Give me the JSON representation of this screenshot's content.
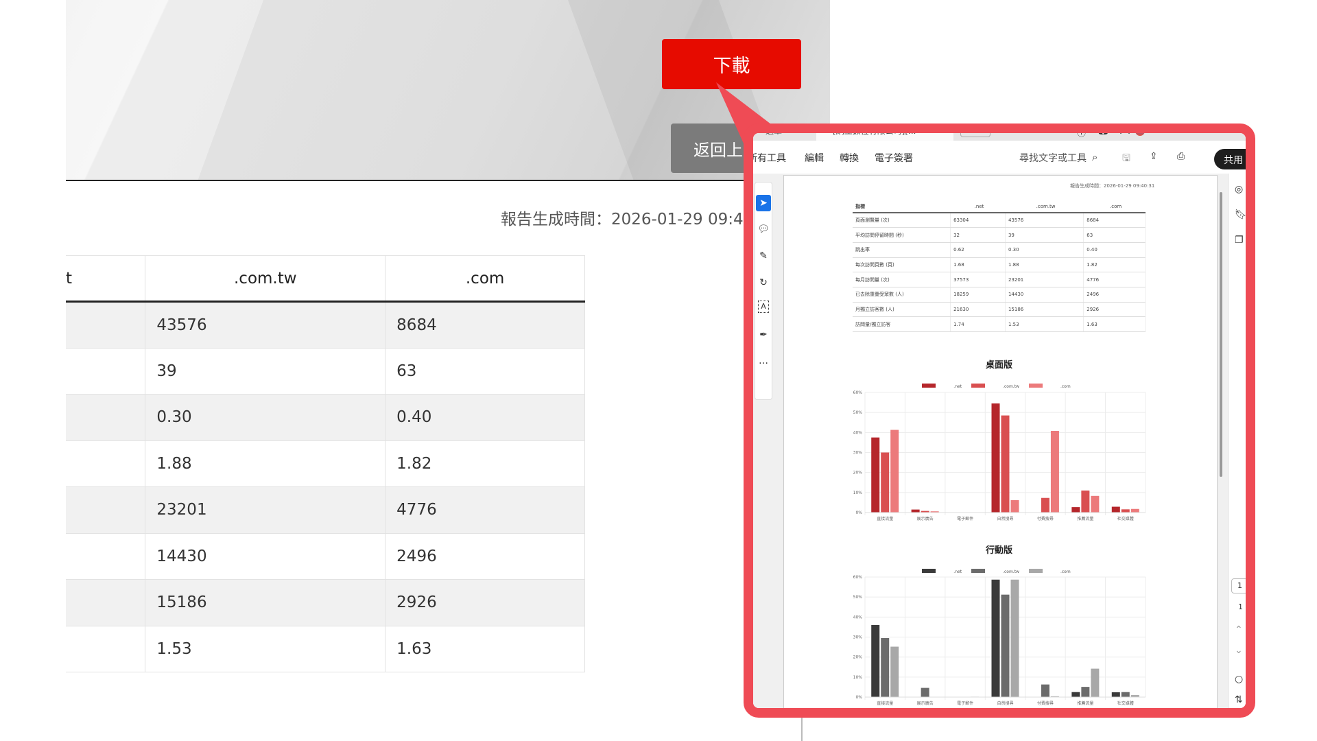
{
  "page": {
    "download_label": "下載",
    "back_label": "返回上",
    "report_time": "報告生成時間：2026-01-29 09:4",
    "table": {
      "headers": [
        "t",
        ".com.tw",
        ".com"
      ],
      "rows": [
        [
          "",
          "43576",
          "8684"
        ],
        [
          "",
          "39",
          "63"
        ],
        [
          "",
          "0.30",
          "0.40"
        ],
        [
          "",
          "1.88",
          "1.82"
        ],
        [
          "",
          "23201",
          "4776"
        ],
        [
          "",
          "14430",
          "2496"
        ],
        [
          "",
          "15186",
          "2926"
        ],
        [
          "",
          "1.53",
          "1.63"
        ]
      ]
    }
  },
  "popup": {
    "accent_color": "#ef4b55",
    "browser": {
      "menu_label": "選單",
      "tab_title": "[網立數位有限公司][...",
      "new_tab_label": "建立"
    },
    "toolbar": {
      "all_tools": "所有工具",
      "edit": "編輯",
      "convert": "轉換",
      "esign": "電子簽署",
      "search_placeholder": "尋找文字或工具",
      "share": "共用"
    },
    "right_panel": {
      "page_input": "1",
      "page_total": "1"
    },
    "pdf": {
      "report_time": "報告生成時間：2026-01-29 09:40:31",
      "table": {
        "headers": [
          "指標",
          ".net",
          ".com.tw",
          ".com"
        ],
        "rows": [
          [
            "頁面瀏覽量 (次)",
            "63304",
            "43576",
            "8684"
          ],
          [
            "平均訪問停留時間 (秒)",
            "32",
            "39",
            "63"
          ],
          [
            "跳出率",
            "0.62",
            "0.30",
            "0.40"
          ],
          [
            "每次訪問頁數 (頁)",
            "1.68",
            "1.88",
            "1.82"
          ],
          [
            "每月訪問量 (次)",
            "37573",
            "23201",
            "4776"
          ],
          [
            "已去除重疊受眾數 (人)",
            "18259",
            "14430",
            "2496"
          ],
          [
            "月獨立訪客數 (人)",
            "21630",
            "15186",
            "2926"
          ],
          [
            "訪問量/獨立訪客",
            "1.74",
            "1.53",
            "1.63"
          ]
        ]
      }
    }
  },
  "chart_data": [
    {
      "type": "bar",
      "title": "桌面版",
      "categories": [
        "直接流量",
        "展示廣告",
        "電子郵件",
        "自然搜尋",
        "付費搜尋",
        "推薦流量",
        "社交媒體"
      ],
      "series": [
        {
          "name": ".net",
          "color": "#b5262b",
          "values": [
            37.5,
            1.5,
            0,
            54.5,
            0,
            2.7,
            2.9
          ]
        },
        {
          "name": ".com.tw",
          "color": "#d94f50",
          "values": [
            30,
            0.8,
            0,
            48.5,
            7.3,
            11,
            1.6
          ]
        },
        {
          "name": ".com",
          "color": "#ec7a7b",
          "values": [
            41.3,
            0.6,
            0,
            6.2,
            40.8,
            8.3,
            1.8
          ]
        }
      ],
      "ylim": [
        0,
        60
      ],
      "yticks": [
        "0%",
        "10%",
        "20%",
        "30%",
        "40%",
        "50%",
        "60%"
      ],
      "grid": true,
      "legend": "top"
    },
    {
      "type": "bar",
      "title": "行動版",
      "categories": [
        "直接流量",
        "展示廣告",
        "電子郵件",
        "自然搜尋",
        "付費搜尋",
        "推薦流量",
        "社交媒體"
      ],
      "series": [
        {
          "name": ".net",
          "color": "#3a3a3a",
          "values": [
            36,
            0,
            0,
            58.7,
            0,
            2.5,
            2.4
          ]
        },
        {
          "name": ".com.tw",
          "color": "#6b6b6b",
          "values": [
            29.5,
            4.6,
            0,
            51.2,
            6.3,
            5.1,
            2.5
          ]
        },
        {
          "name": ".com",
          "color": "#a8a8a8",
          "values": [
            25.2,
            0,
            0.2,
            58.7,
            0.4,
            14.2,
            1
          ]
        }
      ],
      "ylim": [
        0,
        60
      ],
      "yticks": [
        "0%",
        "10%",
        "20%",
        "30%",
        "40%",
        "50%",
        "60%"
      ],
      "grid": true,
      "legend": "top"
    }
  ]
}
